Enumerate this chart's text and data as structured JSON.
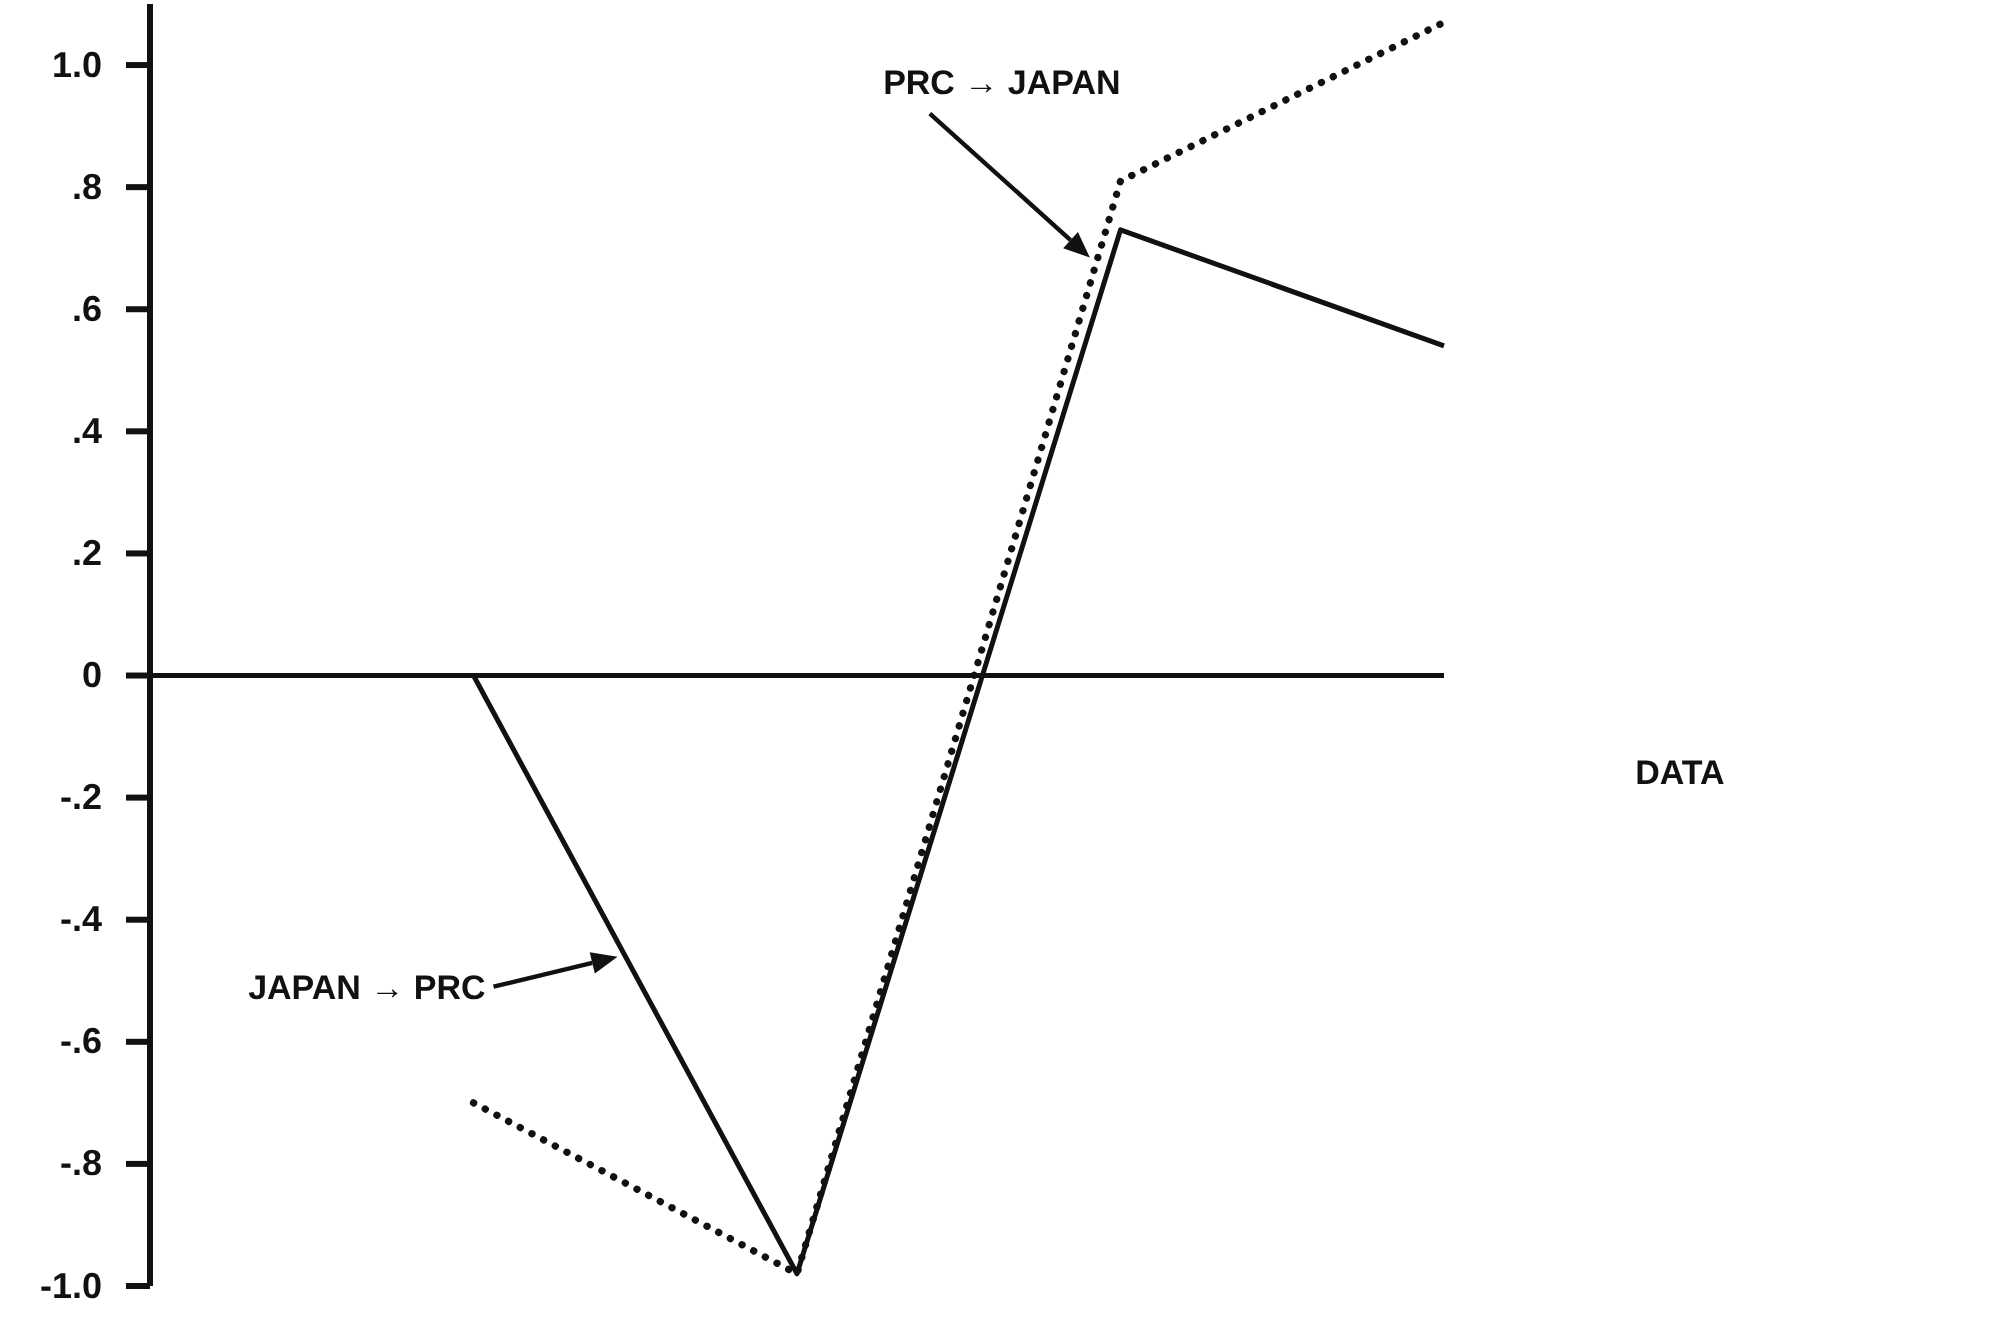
{
  "chart_data": {
    "type": "line",
    "categories": [
      null,
      null,
      null,
      null,
      null
    ],
    "series": [
      {
        "name": "JAPAN → PRC",
        "color": "#111111",
        "line_style": "solid",
        "values": [
          null,
          0,
          -0.98,
          0.73,
          0.54
        ]
      },
      {
        "name": "PRC → JAPAN",
        "color": "#111111",
        "line_style": "dotted",
        "values": [
          null,
          -0.7,
          -0.98,
          0.81,
          1.07
        ]
      }
    ],
    "ylim": [
      -1,
      1.1
    ],
    "yticks": [
      {
        "value": 1,
        "label": "1.0"
      },
      {
        "value": 0.8,
        "label": ".8"
      },
      {
        "value": 0.6,
        "label": ".6"
      },
      {
        "value": 0.4,
        "label": ".4"
      },
      {
        "value": 0.2,
        "label": ".2"
      },
      0,
      {
        "value": -0.2,
        "label": "-.2"
      },
      {
        "value": -0.4,
        "label": "-.4"
      },
      {
        "value": -0.6,
        "label": "-.6"
      },
      {
        "value": -0.8,
        "label": "-.8"
      },
      {
        "value": -1,
        "label": "-1.0"
      }
    ],
    "annotations": [
      "DATA"
    ]
  }
}
